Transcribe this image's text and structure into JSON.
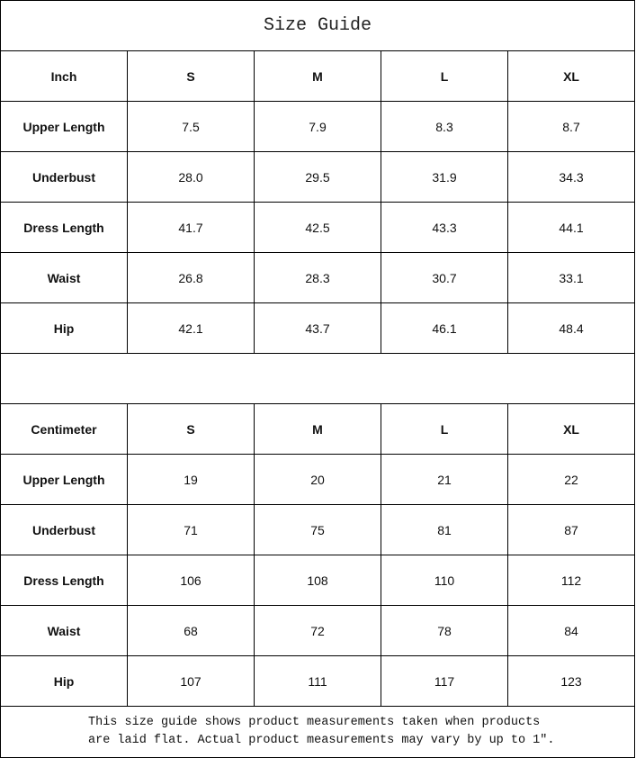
{
  "title": "Size Guide",
  "sizes": [
    "S",
    "M",
    "L",
    "XL"
  ],
  "inch": {
    "unit_label": "Inch",
    "rows": [
      {
        "label": "Upper Length",
        "values": [
          "7.5",
          "7.9",
          "8.3",
          "8.7"
        ]
      },
      {
        "label": "Underbust",
        "values": [
          "28.0",
          "29.5",
          "31.9",
          "34.3"
        ]
      },
      {
        "label": "Dress Length",
        "values": [
          "41.7",
          "42.5",
          "43.3",
          "44.1"
        ]
      },
      {
        "label": "Waist",
        "values": [
          "26.8",
          "28.3",
          "30.7",
          "33.1"
        ]
      },
      {
        "label": "Hip",
        "values": [
          "42.1",
          "43.7",
          "46.1",
          "48.4"
        ]
      }
    ]
  },
  "centimeter": {
    "unit_label": "Centimeter",
    "rows": [
      {
        "label": "Upper Length",
        "values": [
          "19",
          "20",
          "21",
          "22"
        ]
      },
      {
        "label": "Underbust",
        "values": [
          "71",
          "75",
          "81",
          "87"
        ]
      },
      {
        "label": "Dress Length",
        "values": [
          "106",
          "108",
          "110",
          "112"
        ]
      },
      {
        "label": "Waist",
        "values": [
          "68",
          "72",
          "78",
          "84"
        ]
      },
      {
        "label": "Hip",
        "values": [
          "107",
          "111",
          "117",
          "123"
        ]
      }
    ]
  },
  "footer": {
    "line1": "This size guide shows product measurements taken when products",
    "line2": "are laid flat. Actual product measurements may vary by up to 1″."
  }
}
